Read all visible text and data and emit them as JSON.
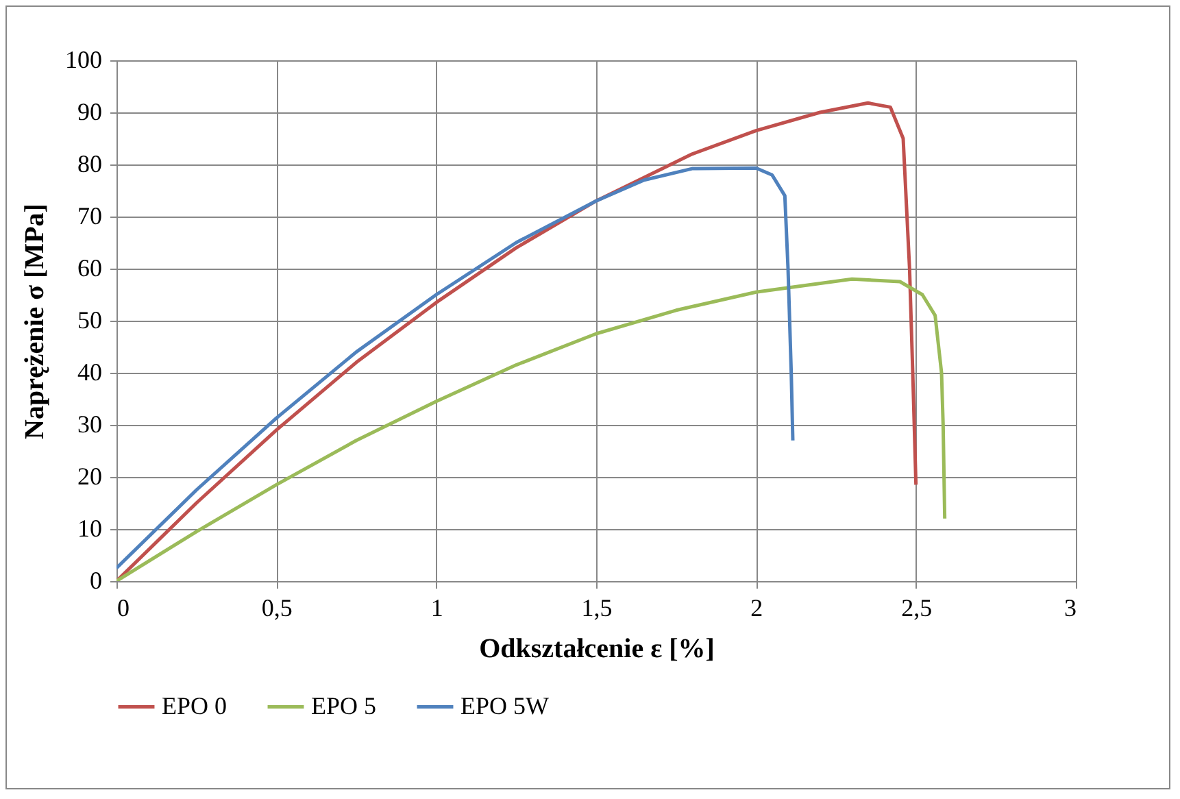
{
  "chart_data": {
    "type": "line",
    "xlabel": "Odkształcenie ε [%]",
    "ylabel": "Naprężenie σ  [MPa]",
    "xlim": [
      0,
      3
    ],
    "ylim": [
      0,
      100
    ],
    "xticks": [
      0,
      {
        "value": 0.5,
        "label": "0,5"
      },
      1,
      {
        "value": 1.5,
        "label": "1,5"
      },
      2,
      {
        "value": 2.5,
        "label": "2,5"
      },
      3
    ],
    "yticks": [
      0,
      10,
      20,
      30,
      40,
      50,
      60,
      70,
      80,
      90,
      100
    ],
    "grid": true,
    "legend": "bottom",
    "marker": "none",
    "line_style": "solid",
    "series": [
      {
        "name": "EPO 0",
        "color": "#c0504d",
        "x": [
          0,
          0.25,
          0.5,
          0.75,
          1,
          1.25,
          1.5,
          1.8,
          2,
          2.2,
          2.35,
          2.42,
          2.46,
          2.48,
          2.49,
          2.5
        ],
        "values": [
          0,
          15,
          29,
          42,
          53.5,
          64,
          73,
          82,
          86.5,
          90,
          91.8,
          91,
          85,
          60,
          40,
          18.5
        ]
      },
      {
        "name": "EPO 5",
        "color": "#9bbb59",
        "x": [
          0,
          0.25,
          0.5,
          0.75,
          1,
          1.25,
          1.5,
          1.75,
          2,
          2.3,
          2.45,
          2.52,
          2.56,
          2.58,
          2.585,
          2.59
        ],
        "values": [
          0,
          9.5,
          18.5,
          27,
          34.5,
          41.5,
          47.5,
          52,
          55.5,
          58,
          57.5,
          55,
          51,
          40,
          30,
          12
        ]
      },
      {
        "name": "EPO 5W",
        "color": "#4f81bd",
        "x": [
          0,
          0.25,
          0.5,
          0.75,
          1,
          1.25,
          1.5,
          1.65,
          1.8,
          2,
          2.05,
          2.09,
          2.1,
          2.11,
          2.115
        ],
        "values": [
          2.5,
          17.5,
          31.3,
          44,
          55,
          65,
          73,
          77,
          79.2,
          79.3,
          78,
          74,
          60,
          40,
          27
        ]
      }
    ]
  }
}
